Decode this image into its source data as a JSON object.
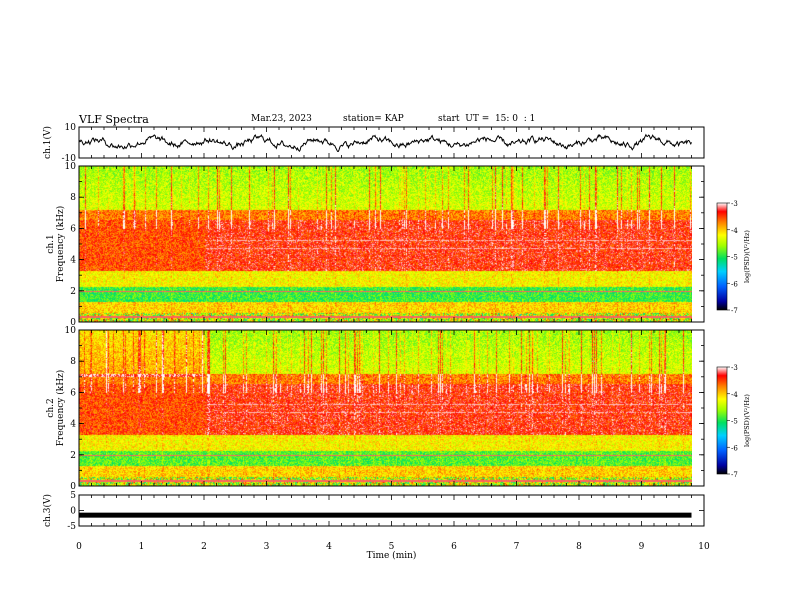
{
  "header": {
    "title": "VLF Spectra",
    "date": "Mar.23, 2023",
    "station": "station= KAP",
    "start": "start  UT =  15: 0  : 1"
  },
  "chart_data": [
    {
      "id": "ch1-waveform",
      "type": "line",
      "ylabel": "ch.1(V)",
      "ylim": [
        -10,
        10
      ],
      "yticks": [
        "10",
        "-10"
      ],
      "xlim": [
        0,
        10
      ],
      "description_values": "waveform oscillating roughly between -7 and +7 V over 0–9.8 min"
    },
    {
      "id": "ch1-spectrogram",
      "type": "heatmap",
      "ylabel": "ch.1\nFrequency  (kHz)",
      "ylabel_lines": [
        "ch.1",
        "Frequency  (kHz)"
      ],
      "ylim": [
        0,
        10
      ],
      "yticks": [
        "0",
        "2",
        "4",
        "6",
        "8",
        "10"
      ],
      "xlim": [
        0,
        10
      ],
      "data_xmax": 9.8,
      "colorbar": {
        "label": "log(PSD)(V²/Hz)",
        "min": -7,
        "max": -3,
        "ticks": [
          "-3",
          "-4",
          "-5",
          "-6",
          "-7"
        ]
      }
    },
    {
      "id": "ch2-spectrogram",
      "type": "heatmap",
      "ylabel_lines": [
        "ch.2",
        "Frequency  (kHz)"
      ],
      "ylim": [
        0,
        10
      ],
      "yticks": [
        "0",
        "2",
        "4",
        "6",
        "8",
        "10"
      ],
      "xlim": [
        0,
        10
      ],
      "data_xmax": 9.8,
      "colorbar": {
        "label": "log(PSD)(V²/Hz)",
        "min": -7,
        "max": -3,
        "ticks": [
          "-3",
          "-4",
          "-5",
          "-6",
          "-7"
        ]
      }
    },
    {
      "id": "ch3-signal",
      "type": "line",
      "ylabel": "ch.3(V)",
      "ylim": [
        -5,
        5
      ],
      "yticks": [
        "5",
        "0",
        "-5"
      ],
      "xlim": [
        0,
        10
      ],
      "level": -1.5,
      "xlabel": "Time  (min)",
      "xticks": [
        "0",
        "1",
        "2",
        "3",
        "4",
        "5",
        "6",
        "7",
        "8",
        "9",
        "10"
      ]
    }
  ]
}
